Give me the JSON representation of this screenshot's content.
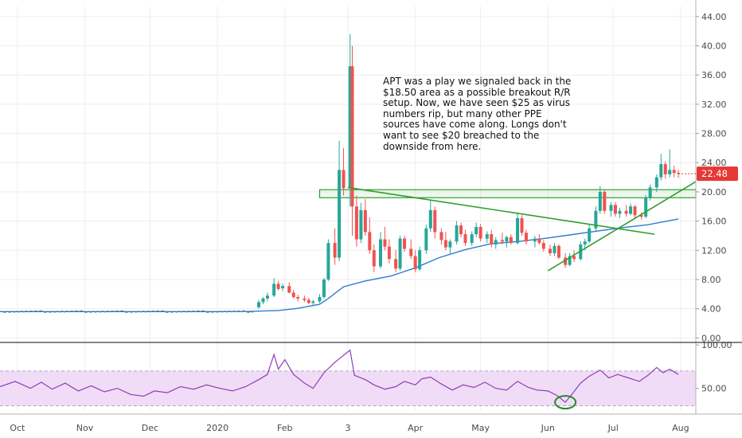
{
  "chart_data": {
    "type": "candlestick",
    "title": "",
    "price_axis": {
      "ticks": [
        "44.00",
        "40.00",
        "36.00",
        "32.00",
        "28.00",
        "24.00",
        "20.00",
        "16.00",
        "12.00",
        "8.00",
        "4.00",
        "0.00"
      ],
      "range": [
        -0.4,
        45.4
      ]
    },
    "last_price": {
      "label": "22.48",
      "value": 22.48,
      "color": "#e53935"
    },
    "time_axis": {
      "labels": [
        "Oct",
        "Nov",
        "Dec",
        "2020",
        "Feb",
        "3",
        "Apr",
        "May",
        "Jun",
        "Jul",
        "Aug"
      ],
      "label_dates": [
        "2019-10-01",
        "2019-11-01",
        "2019-12-01",
        "2020-01-01",
        "2020-02-01",
        "2020-03-01",
        "2020-04-01",
        "2020-05-01",
        "2020-06-01",
        "2020-07-01",
        "2020-08-01"
      ],
      "range": [
        "2019-09-23",
        "2020-08-08"
      ]
    },
    "annotation": "APT was a play we signaled back in the\n$18.50 area as a possible breakout R/R\nsetup. Now, we have seen $25 as virus\nnumbers rip, but many other PPE\nsources have come along. Longs don't\nwant to see $20 breached to the\ndownside from here.",
    "support_zone": {
      "from_date": "2020-02-17",
      "to_date": "2020-08-08",
      "low": 19.2,
      "high": 20.3
    },
    "trendlines": [
      {
        "name": "",
        "from": [
          "2020-03-01",
          20.6
        ],
        "to": [
          "2020-07-20",
          14.2
        ]
      },
      {
        "name": "",
        "from": [
          "2020-06-01",
          9.2
        ],
        "to": [
          "2020-08-08",
          21.4
        ]
      }
    ],
    "moving_average": [
      [
        "2019-09-23",
        3.6
      ],
      [
        "2019-12-31",
        3.6
      ],
      [
        "2020-01-15",
        3.62
      ],
      [
        "2020-01-29",
        3.75
      ],
      [
        "2020-02-07",
        4.05
      ],
      [
        "2020-02-17",
        4.6
      ],
      [
        "2020-02-21",
        5.4
      ],
      [
        "2020-02-28",
        7.0
      ],
      [
        "2020-03-09",
        7.8
      ],
      [
        "2020-03-21",
        8.5
      ],
      [
        "2020-04-01",
        9.6
      ],
      [
        "2020-04-12",
        11.0
      ],
      [
        "2020-04-24",
        12.1
      ],
      [
        "2020-05-06",
        12.9
      ],
      [
        "2020-05-18",
        13.2
      ],
      [
        "2020-05-30",
        13.6
      ],
      [
        "2020-06-11",
        14.1
      ],
      [
        "2020-06-23",
        14.6
      ],
      [
        "2020-07-05",
        15.1
      ],
      [
        "2020-07-17",
        15.5
      ],
      [
        "2020-07-31",
        16.3
      ]
    ],
    "ohlc_columns": [
      "date",
      "open",
      "high",
      "low",
      "close"
    ],
    "candles": [
      [
        "2020-01-20",
        4.2,
        5.2,
        4.0,
        4.9
      ],
      [
        "2020-01-22",
        4.9,
        5.6,
        4.6,
        5.4
      ],
      [
        "2020-01-24",
        5.4,
        6.2,
        5.0,
        5.8
      ],
      [
        "2020-01-27",
        5.8,
        8.2,
        5.6,
        7.4
      ],
      [
        "2020-01-29",
        7.4,
        7.8,
        6.5,
        6.7
      ],
      [
        "2020-01-31",
        6.8,
        7.4,
        6.4,
        7.1
      ],
      [
        "2020-02-03",
        7.1,
        7.6,
        6.1,
        6.2
      ],
      [
        "2020-02-05",
        6.2,
        6.6,
        5.4,
        5.6
      ],
      [
        "2020-02-07",
        5.6,
        5.9,
        5.0,
        5.4
      ],
      [
        "2020-02-10",
        5.4,
        5.8,
        4.9,
        5.2
      ],
      [
        "2020-02-12",
        5.2,
        5.5,
        4.6,
        4.8
      ],
      [
        "2020-02-14",
        4.8,
        5.2,
        4.5,
        5.0
      ],
      [
        "2020-02-17",
        5.0,
        6.0,
        4.8,
        5.6
      ],
      [
        "2020-02-19",
        5.6,
        8.2,
        5.4,
        8.0
      ],
      [
        "2020-02-21",
        8.0,
        13.5,
        7.8,
        13.0
      ],
      [
        "2020-02-24",
        13.0,
        15.0,
        10.0,
        11.0
      ],
      [
        "2020-02-26",
        11.0,
        27.0,
        10.5,
        23.0
      ],
      [
        "2020-02-28",
        23.0,
        26.0,
        19.5,
        20.5
      ],
      [
        "2020-03-02",
        20.5,
        41.6,
        18.0,
        37.2
      ],
      [
        "2020-03-03",
        37.2,
        40.0,
        14.0,
        18.0
      ],
      [
        "2020-03-05",
        18.0,
        19.5,
        12.5,
        13.5
      ],
      [
        "2020-03-07",
        13.5,
        18.5,
        13.0,
        17.5
      ],
      [
        "2020-03-09",
        17.5,
        19.0,
        14.0,
        14.5
      ],
      [
        "2020-03-11",
        14.5,
        16.5,
        11.5,
        12.0
      ],
      [
        "2020-03-13",
        12.0,
        12.8,
        9.0,
        9.8
      ],
      [
        "2020-03-16",
        9.8,
        14.5,
        9.5,
        13.5
      ],
      [
        "2020-03-18",
        13.5,
        15.2,
        12.0,
        12.5
      ],
      [
        "2020-03-20",
        12.5,
        13.5,
        10.2,
        10.8
      ],
      [
        "2020-03-23",
        10.8,
        12.0,
        9.0,
        9.5
      ],
      [
        "2020-03-25",
        9.5,
        14.0,
        9.2,
        13.6
      ],
      [
        "2020-03-27",
        13.6,
        14.0,
        11.8,
        12.2
      ],
      [
        "2020-03-30",
        12.2,
        13.5,
        10.8,
        11.2
      ],
      [
        "2020-04-01",
        11.2,
        12.0,
        9.0,
        9.4
      ],
      [
        "2020-04-03",
        9.4,
        12.5,
        9.2,
        12.0
      ],
      [
        "2020-04-06",
        12.0,
        15.5,
        11.5,
        15.0
      ],
      [
        "2020-04-08",
        15.0,
        18.8,
        14.5,
        17.5
      ],
      [
        "2020-04-10",
        17.5,
        18.0,
        13.6,
        14.5
      ],
      [
        "2020-04-13",
        14.5,
        15.0,
        12.8,
        13.4
      ],
      [
        "2020-04-15",
        13.4,
        14.5,
        12.0,
        12.4
      ],
      [
        "2020-04-17",
        12.4,
        13.5,
        11.5,
        13.2
      ],
      [
        "2020-04-20",
        13.2,
        16.0,
        12.8,
        15.4
      ],
      [
        "2020-04-22",
        15.4,
        15.8,
        13.8,
        14.2
      ],
      [
        "2020-04-24",
        14.2,
        14.8,
        12.6,
        13.0
      ],
      [
        "2020-04-27",
        13.0,
        14.6,
        12.6,
        14.2
      ],
      [
        "2020-04-29",
        14.2,
        15.8,
        13.8,
        15.2
      ],
      [
        "2020-05-01",
        15.2,
        15.6,
        13.2,
        13.6
      ],
      [
        "2020-05-04",
        13.6,
        14.6,
        13.0,
        14.2
      ],
      [
        "2020-05-06",
        14.2,
        14.8,
        12.4,
        12.8
      ],
      [
        "2020-05-08",
        12.8,
        13.8,
        12.2,
        13.4
      ],
      [
        "2020-05-11",
        13.4,
        14.4,
        12.8,
        13.2
      ],
      [
        "2020-05-13",
        13.2,
        14.0,
        12.4,
        13.8
      ],
      [
        "2020-05-15",
        13.8,
        14.2,
        12.8,
        13.0
      ],
      [
        "2020-05-18",
        13.0,
        17.2,
        12.8,
        16.4
      ],
      [
        "2020-05-20",
        16.4,
        16.8,
        14.0,
        14.4
      ],
      [
        "2020-05-22",
        14.4,
        14.8,
        12.8,
        13.2
      ],
      [
        "2020-05-26",
        13.2,
        14.0,
        12.4,
        13.6
      ],
      [
        "2020-05-28",
        13.6,
        14.2,
        12.8,
        13.0
      ],
      [
        "2020-05-30",
        13.0,
        13.4,
        11.8,
        12.2
      ],
      [
        "2020-06-02",
        12.2,
        12.8,
        11.2,
        11.6
      ],
      [
        "2020-06-04",
        11.6,
        13.0,
        11.2,
        12.6
      ],
      [
        "2020-06-06",
        12.6,
        12.8,
        10.8,
        11.0
      ],
      [
        "2020-06-09",
        11.0,
        11.6,
        9.6,
        10.0
      ],
      [
        "2020-06-11",
        10.0,
        11.6,
        9.8,
        11.2
      ],
      [
        "2020-06-13",
        11.2,
        12.0,
        10.4,
        10.8
      ],
      [
        "2020-06-16",
        10.8,
        13.2,
        10.6,
        12.8
      ],
      [
        "2020-06-18",
        12.8,
        13.6,
        12.0,
        13.2
      ],
      [
        "2020-06-20",
        13.2,
        15.6,
        13.0,
        15.0
      ],
      [
        "2020-06-23",
        15.0,
        18.0,
        14.6,
        17.4
      ],
      [
        "2020-06-25",
        17.4,
        20.8,
        17.0,
        20.0
      ],
      [
        "2020-06-27",
        20.0,
        20.2,
        17.0,
        17.4
      ],
      [
        "2020-06-30",
        17.4,
        18.6,
        16.6,
        18.2
      ],
      [
        "2020-07-02",
        18.2,
        18.6,
        16.6,
        17.0
      ],
      [
        "2020-07-04",
        17.0,
        17.8,
        16.4,
        17.4
      ],
      [
        "2020-07-07",
        17.4,
        18.2,
        16.6,
        17.0
      ],
      [
        "2020-07-09",
        17.0,
        18.4,
        16.8,
        18.0
      ],
      [
        "2020-07-11",
        18.0,
        18.2,
        16.4,
        16.8
      ],
      [
        "2020-07-14",
        16.8,
        17.2,
        16.2,
        16.6
      ],
      [
        "2020-07-16",
        16.6,
        19.6,
        16.4,
        19.2
      ],
      [
        "2020-07-18",
        19.2,
        21.0,
        18.8,
        20.6
      ],
      [
        "2020-07-21",
        20.6,
        22.4,
        20.0,
        22.0
      ],
      [
        "2020-07-23",
        22.0,
        25.2,
        21.6,
        23.8
      ],
      [
        "2020-07-25",
        23.8,
        24.2,
        21.8,
        22.4
      ],
      [
        "2020-07-27",
        22.4,
        25.8,
        22.0,
        23.0
      ],
      [
        "2020-07-29",
        23.0,
        23.6,
        22.0,
        22.6
      ],
      [
        "2020-07-31",
        22.6,
        23.0,
        21.9,
        22.48
      ]
    ],
    "rsi": {
      "ticks": [
        "100.00",
        "50.00"
      ],
      "range": [
        24,
        101
      ],
      "band": [
        30,
        70
      ],
      "band_color": "#f1dcf7",
      "line_color": "#8e3fb2",
      "points": [
        [
          "2019-09-23",
          52
        ],
        [
          "2019-09-30",
          58
        ],
        [
          "2019-10-07",
          50
        ],
        [
          "2019-10-12",
          57
        ],
        [
          "2019-10-17",
          49
        ],
        [
          "2019-10-23",
          56
        ],
        [
          "2019-10-29",
          47
        ],
        [
          "2019-11-04",
          53
        ],
        [
          "2019-11-10",
          46
        ],
        [
          "2019-11-16",
          50
        ],
        [
          "2019-11-22",
          43
        ],
        [
          "2019-11-28",
          41
        ],
        [
          "2019-12-03",
          47
        ],
        [
          "2019-12-09",
          45
        ],
        [
          "2019-12-15",
          52
        ],
        [
          "2019-12-21",
          49
        ],
        [
          "2019-12-27",
          54
        ],
        [
          "2020-01-02",
          50
        ],
        [
          "2020-01-08",
          47
        ],
        [
          "2020-01-14",
          52
        ],
        [
          "2020-01-20",
          60
        ],
        [
          "2020-01-24",
          66
        ],
        [
          "2020-01-27",
          89
        ],
        [
          "2020-01-29",
          72
        ],
        [
          "2020-02-01",
          83
        ],
        [
          "2020-02-05",
          66
        ],
        [
          "2020-02-10",
          56
        ],
        [
          "2020-02-14",
          50
        ],
        [
          "2020-02-19",
          68
        ],
        [
          "2020-02-24",
          80
        ],
        [
          "2020-03-02",
          94
        ],
        [
          "2020-03-04",
          65
        ],
        [
          "2020-03-09",
          60
        ],
        [
          "2020-03-13",
          54
        ],
        [
          "2020-03-18",
          49
        ],
        [
          "2020-03-23",
          52
        ],
        [
          "2020-03-27",
          58
        ],
        [
          "2020-04-01",
          54
        ],
        [
          "2020-04-04",
          61
        ],
        [
          "2020-04-08",
          63
        ],
        [
          "2020-04-13",
          55
        ],
        [
          "2020-04-18",
          48
        ],
        [
          "2020-04-23",
          54
        ],
        [
          "2020-04-28",
          51
        ],
        [
          "2020-05-03",
          57
        ],
        [
          "2020-05-08",
          50
        ],
        [
          "2020-05-13",
          48
        ],
        [
          "2020-05-18",
          58
        ],
        [
          "2020-05-23",
          51
        ],
        [
          "2020-05-27",
          48
        ],
        [
          "2020-06-01",
          47
        ],
        [
          "2020-06-05",
          42
        ],
        [
          "2020-06-09",
          34
        ],
        [
          "2020-06-12",
          43
        ],
        [
          "2020-06-16",
          56
        ],
        [
          "2020-06-20",
          64
        ],
        [
          "2020-06-25",
          71
        ],
        [
          "2020-06-29",
          62
        ],
        [
          "2020-07-03",
          66
        ],
        [
          "2020-07-08",
          62
        ],
        [
          "2020-07-13",
          58
        ],
        [
          "2020-07-17",
          65
        ],
        [
          "2020-07-21",
          74
        ],
        [
          "2020-07-24",
          68
        ],
        [
          "2020-07-27",
          72
        ],
        [
          "2020-07-31",
          66
        ]
      ],
      "highlight": {
        "date": "2020-06-09",
        "value": 34,
        "color": "#1e8c1e"
      }
    },
    "colors": {
      "up": "#26a69a",
      "down": "#ef5350",
      "ma": "#2e7bd1",
      "lines": "#2e9e2e",
      "grid": "#eeeeee"
    }
  }
}
